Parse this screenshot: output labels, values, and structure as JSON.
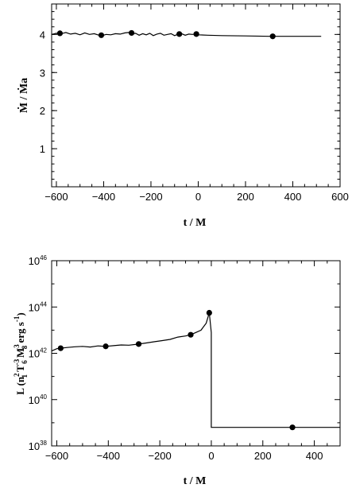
{
  "chart_data": [
    {
      "type": "line",
      "xlabel": "t / M",
      "ylabel": "Ṁ / Ṁa",
      "xlim": [
        -620,
        600
      ],
      "ylim": [
        0,
        4.8
      ],
      "xticks": [
        -600,
        -400,
        -200,
        0,
        200,
        400,
        600
      ],
      "yticks": [
        1,
        2,
        3,
        4
      ],
      "xtick_labels": [
        "−600",
        "−400",
        "−200",
        "0",
        "200",
        "400",
        "600"
      ],
      "ytick_labels": [
        "1",
        "2",
        "3",
        "4"
      ],
      "series": [
        {
          "type": "line",
          "x": [
            -620,
            -600,
            -580,
            -560,
            -540,
            -520,
            -500,
            -480,
            -460,
            -440,
            -420,
            -405,
            -390,
            -370,
            -350,
            -330,
            -310,
            -295,
            -280,
            -265,
            -250,
            -235,
            -220,
            -205,
            -190,
            -175,
            -160,
            -145,
            -130,
            -115,
            -100,
            -85,
            -70,
            -55,
            -40,
            -25,
            -10,
            0,
            40,
            100,
            200,
            300,
            400,
            520
          ],
          "y": [
            4.0,
            4.03,
            4.02,
            4.05,
            4.01,
            4.03,
            3.99,
            4.04,
            4.0,
            4.02,
            3.98,
            3.97,
            4.0,
            3.99,
            4.02,
            4.01,
            4.04,
            4.05,
            4.02,
            4.03,
            3.98,
            4.02,
            3.99,
            4.03,
            3.97,
            4.01,
            4.03,
            3.98,
            4.0,
            4.02,
            3.97,
            4.01,
            4.02,
            3.98,
            4.01,
            4.0,
            4.01,
            3.99,
            3.98,
            3.97,
            3.96,
            3.95,
            3.95,
            3.95
          ]
        },
        {
          "type": "scatter",
          "x": [
            -585,
            -410,
            -282,
            -80,
            -8,
            315
          ],
          "y": [
            4.03,
            3.98,
            4.04,
            4.01,
            4.01,
            3.95
          ]
        }
      ]
    },
    {
      "type": "line",
      "xlabel": "t / M",
      "ylabel_parts": [
        "L (n",
        "2",
        "1",
        " T",
        "-3",
        "6",
        " M",
        "3",
        "8",
        " erg s",
        "-1",
        ")"
      ],
      "xlim": [
        -620,
        500
      ],
      "ylim": [
        38,
        46
      ],
      "y_scale": "log",
      "xticks": [
        -600,
        -400,
        -200,
        0,
        200,
        400
      ],
      "yticks": [
        38,
        40,
        42,
        44,
        46
      ],
      "xtick_labels": [
        "−600",
        "−400",
        "−200",
        "0",
        "200",
        "400"
      ],
      "ytick_labels": [
        {
          "base": "10",
          "exp": "38"
        },
        {
          "base": "10",
          "exp": "40"
        },
        {
          "base": "10",
          "exp": "42"
        },
        {
          "base": "10",
          "exp": "44"
        },
        {
          "base": "10",
          "exp": "46"
        }
      ],
      "series": [
        {
          "type": "line",
          "x": [
            -620,
            -600,
            -585,
            -560,
            -530,
            -500,
            -470,
            -440,
            -410,
            -380,
            -350,
            -320,
            -282,
            -250,
            -220,
            -190,
            -160,
            -130,
            -100,
            -80,
            -60,
            -40,
            -20,
            -8,
            0,
            0,
            100,
            200,
            300,
            500
          ],
          "y": [
            42.1,
            42.2,
            42.22,
            42.25,
            42.28,
            42.3,
            42.27,
            42.32,
            42.3,
            42.33,
            42.36,
            42.35,
            42.4,
            42.45,
            42.5,
            42.55,
            42.6,
            42.7,
            42.75,
            42.8,
            42.9,
            43.0,
            43.3,
            43.75,
            42.9,
            38.8,
            38.8,
            38.8,
            38.8,
            38.8
          ]
        },
        {
          "type": "scatter",
          "x": [
            -585,
            -410,
            -282,
            -80,
            -8,
            315
          ],
          "y": [
            42.22,
            42.3,
            42.4,
            42.8,
            43.75,
            38.8
          ]
        }
      ]
    }
  ]
}
